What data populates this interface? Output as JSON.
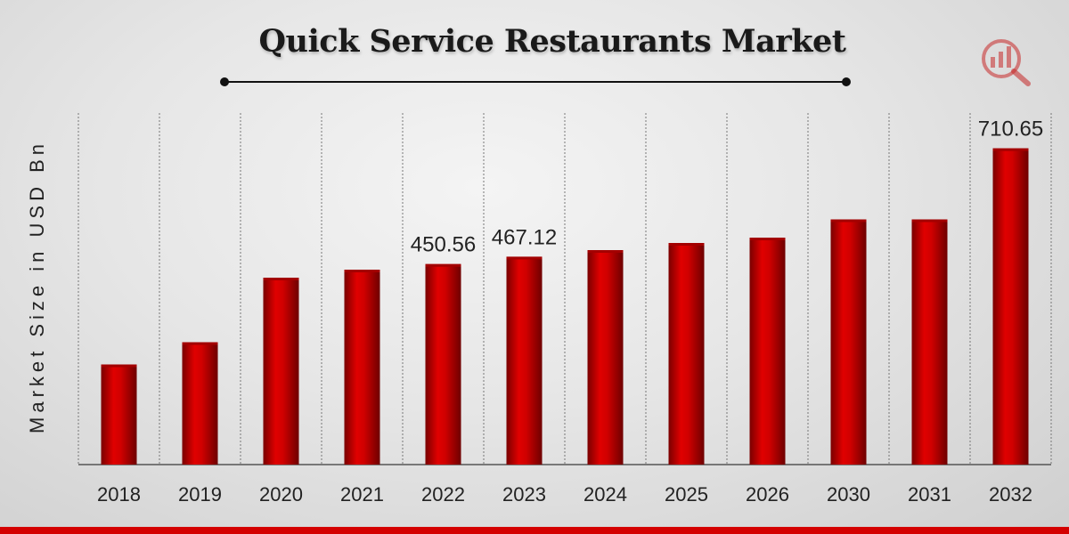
{
  "chart_data": {
    "type": "bar",
    "title": "Quick Service Restaurants Market",
    "ylabel": "Market Size in USD Bn",
    "xlabel": "",
    "categories": [
      "2018",
      "2019",
      "2020",
      "2021",
      "2022",
      "2023",
      "2024",
      "2025",
      "2026",
      "2030",
      "2031",
      "2032"
    ],
    "values": [
      225,
      275,
      420,
      438,
      450.56,
      467.12,
      482,
      498,
      510,
      551,
      551,
      710.65
    ],
    "data_labels": [
      {
        "category": "2022",
        "text": "450.56"
      },
      {
        "category": "2023",
        "text": "467.12"
      },
      {
        "category": "2032",
        "text": "710.65"
      }
    ],
    "bar_color": "#cc0000",
    "grid": "vertical dashed separators"
  },
  "logo": {
    "icon": "bar-chart-magnifier-icon",
    "color": "#c62828"
  },
  "accent_color": "#d40000"
}
